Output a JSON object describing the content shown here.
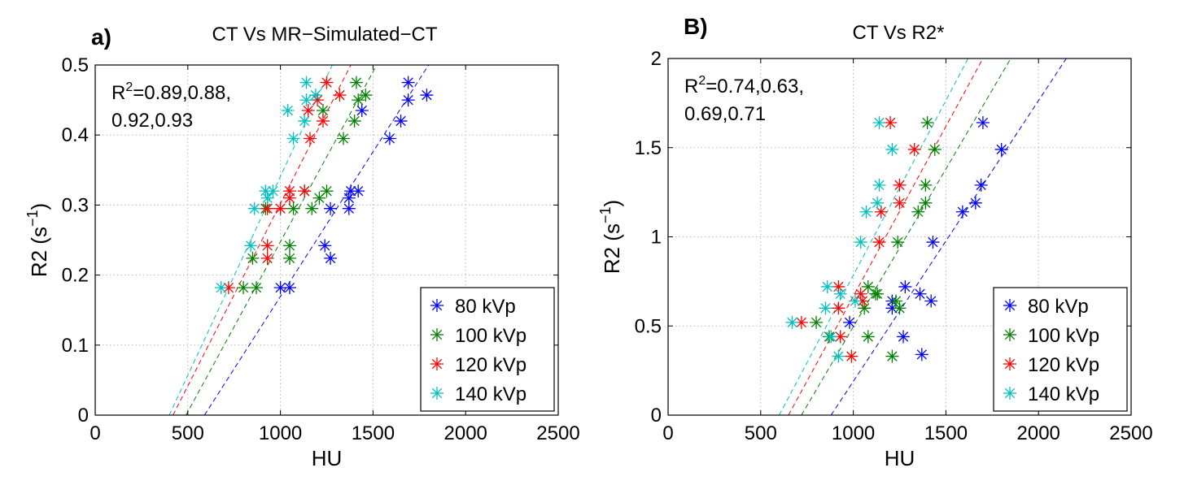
{
  "chart_data": [
    {
      "type": "scatter",
      "panel_label": "a)",
      "title": "CT Vs MR−Simulated−CT",
      "xlabel": "HU",
      "ylabel": "R2 (s",
      "ylabel_sup": "−1",
      "ylabel_close": ")",
      "xlim": [
        0,
        2500
      ],
      "ylim": [
        0,
        0.5
      ],
      "xticks": [
        0,
        500,
        1000,
        1500,
        2000,
        2500
      ],
      "yticks": [
        0,
        0.1,
        0.2,
        0.3,
        0.4,
        0.5
      ],
      "xtick_labels": [
        "0",
        "500",
        "1000",
        "1500",
        "2000",
        "2500"
      ],
      "ytick_labels": [
        "0",
        "0.1",
        "0.2",
        "0.3",
        "0.4",
        "0.5"
      ],
      "grid": true,
      "legend_position": "bottom-right",
      "annotation": {
        "line1_pre": "R",
        "line1_sup": "2",
        "line1_post": "=0.89,0.88,",
        "line2": "0.92,0.93"
      },
      "series": [
        {
          "name": "80 kVp",
          "color": "#0000ff",
          "points": [
            [
              1000,
              0.182
            ],
            [
              1050,
              0.182
            ],
            [
              1240,
              0.242
            ],
            [
              1270,
              0.224
            ],
            [
              1270,
              0.295
            ],
            [
              1370,
              0.295
            ],
            [
              1370,
              0.31
            ],
            [
              1380,
              0.32
            ],
            [
              1420,
              0.32
            ],
            [
              1440,
              0.435
            ],
            [
              1590,
              0.395
            ],
            [
              1650,
              0.42
            ],
            [
              1690,
              0.45
            ],
            [
              1690,
              0.475
            ],
            [
              1790,
              0.457
            ]
          ],
          "fit": [
            [
              590,
              0
            ],
            [
              1800,
              0.5
            ]
          ]
        },
        {
          "name": "100 kVp",
          "color": "#008000",
          "points": [
            [
              800,
              0.182
            ],
            [
              870,
              0.182
            ],
            [
              850,
              0.224
            ],
            [
              1050,
              0.224
            ],
            [
              1050,
              0.242
            ],
            [
              920,
              0.295
            ],
            [
              1070,
              0.295
            ],
            [
              1170,
              0.295
            ],
            [
              1130,
              0.32
            ],
            [
              1210,
              0.31
            ],
            [
              1250,
              0.32
            ],
            [
              1230,
              0.435
            ],
            [
              1340,
              0.395
            ],
            [
              1400,
              0.42
            ],
            [
              1410,
              0.475
            ],
            [
              1420,
              0.45
            ],
            [
              1460,
              0.457
            ]
          ],
          "fit": [
            [
              490,
              0
            ],
            [
              1520,
              0.5
            ]
          ]
        },
        {
          "name": "120 kVp",
          "color": "#ff0000",
          "points": [
            [
              720,
              0.182
            ],
            [
              930,
              0.224
            ],
            [
              930,
              0.242
            ],
            [
              930,
              0.295
            ],
            [
              1000,
              0.295
            ],
            [
              1050,
              0.31
            ],
            [
              1050,
              0.32
            ],
            [
              1130,
              0.32
            ],
            [
              1160,
              0.395
            ],
            [
              1150,
              0.435
            ],
            [
              1200,
              0.45
            ],
            [
              1230,
              0.42
            ],
            [
              1250,
              0.475
            ],
            [
              1320,
              0.457
            ]
          ],
          "fit": [
            [
              420,
              0
            ],
            [
              1380,
              0.5
            ]
          ]
        },
        {
          "name": "140 kVp",
          "color": "#00bfbf",
          "points": [
            [
              680,
              0.182
            ],
            [
              840,
              0.242
            ],
            [
              860,
              0.295
            ],
            [
              930,
              0.31
            ],
            [
              920,
              0.32
            ],
            [
              960,
              0.32
            ],
            [
              1040,
              0.435
            ],
            [
              1070,
              0.395
            ],
            [
              1130,
              0.42
            ],
            [
              1140,
              0.45
            ],
            [
              1140,
              0.475
            ],
            [
              1190,
              0.457
            ]
          ],
          "fit": [
            [
              400,
              0
            ],
            [
              1280,
              0.5
            ]
          ]
        }
      ]
    },
    {
      "type": "scatter",
      "panel_label": "B)",
      "title": "CT Vs R2*",
      "xlabel": "HU",
      "ylabel": "R2 (s",
      "ylabel_sup": "−1",
      "ylabel_close": ")",
      "xlim": [
        0,
        2500
      ],
      "ylim": [
        0,
        2
      ],
      "xticks": [
        0,
        500,
        1000,
        1500,
        2000,
        2500
      ],
      "yticks": [
        0,
        0.5,
        1,
        1.5,
        2
      ],
      "xtick_labels": [
        "0",
        "500",
        "1000",
        "1500",
        "2000",
        "2500"
      ],
      "ytick_labels": [
        "0",
        "0.5",
        "1",
        "1.5",
        "2"
      ],
      "grid": true,
      "legend_position": "bottom-right",
      "annotation": {
        "line1_pre": "R",
        "line1_sup": "2",
        "line1_post": "=0.74,0.63,",
        "line2": "0.69,0.71"
      },
      "series": [
        {
          "name": "80 kVp",
          "color": "#0000ff",
          "points": [
            [
              980,
              0.52
            ],
            [
              1210,
              0.6
            ],
            [
              1210,
              0.64
            ],
            [
              1270,
              0.44
            ],
            [
              1280,
              0.72
            ],
            [
              1360,
              0.68
            ],
            [
              1370,
              0.34
            ],
            [
              1420,
              0.64
            ],
            [
              1430,
              0.97
            ],
            [
              1590,
              1.14
            ],
            [
              1660,
              1.19
            ],
            [
              1690,
              1.29
            ],
            [
              1700,
              1.64
            ],
            [
              1800,
              1.49
            ]
          ],
          "fit": [
            [
              880,
              0
            ],
            [
              2150,
              2
            ]
          ]
        },
        {
          "name": "100 kVp",
          "color": "#008000",
          "points": [
            [
              800,
              0.52
            ],
            [
              870,
              0.44
            ],
            [
              1080,
              0.44
            ],
            [
              1060,
              0.6
            ],
            [
              1080,
              0.72
            ],
            [
              1120,
              0.68
            ],
            [
              1130,
              0.68
            ],
            [
              1210,
              0.33
            ],
            [
              1230,
              0.64
            ],
            [
              1250,
              0.6
            ],
            [
              1240,
              0.97
            ],
            [
              1350,
              1.14
            ],
            [
              1390,
              1.19
            ],
            [
              1390,
              1.29
            ],
            [
              1400,
              1.64
            ],
            [
              1440,
              1.49
            ]
          ],
          "fit": [
            [
              720,
              0
            ],
            [
              1850,
              2
            ]
          ]
        },
        {
          "name": "120 kVp",
          "color": "#ff0000",
          "points": [
            [
              720,
              0.52
            ],
            [
              920,
              0.6
            ],
            [
              920,
              0.72
            ],
            [
              930,
              0.44
            ],
            [
              990,
              0.33
            ],
            [
              1040,
              0.68
            ],
            [
              1050,
              0.64
            ],
            [
              1140,
              0.97
            ],
            [
              1150,
              1.14
            ],
            [
              1200,
              1.64
            ],
            [
              1250,
              1.19
            ],
            [
              1250,
              1.29
            ],
            [
              1330,
              1.49
            ]
          ],
          "fit": [
            [
              650,
              0
            ],
            [
              1700,
              2
            ]
          ]
        },
        {
          "name": "140 kVp",
          "color": "#00bfbf",
          "points": [
            [
              670,
              0.52
            ],
            [
              860,
              0.72
            ],
            [
              850,
              0.6
            ],
            [
              880,
              0.44
            ],
            [
              920,
              0.33
            ],
            [
              930,
              0.68
            ],
            [
              1010,
              0.64
            ],
            [
              1040,
              0.97
            ],
            [
              1070,
              1.14
            ],
            [
              1130,
              1.19
            ],
            [
              1140,
              1.29
            ],
            [
              1140,
              1.64
            ],
            [
              1210,
              1.49
            ]
          ],
          "fit": [
            [
              600,
              0
            ],
            [
              1620,
              2
            ]
          ]
        }
      ]
    }
  ]
}
